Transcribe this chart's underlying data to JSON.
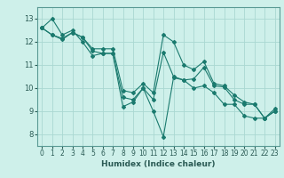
{
  "xlabel": "Humidex (Indice chaleur)",
  "bg_color": "#cef0ea",
  "grid_color": "#aad8d2",
  "line_color": "#1a7a6e",
  "xlim": [
    -0.5,
    23.5
  ],
  "ylim": [
    7.5,
    13.5
  ],
  "series": [
    [
      12.6,
      13.0,
      12.3,
      12.5,
      12.0,
      11.4,
      11.5,
      11.5,
      9.2,
      9.4,
      10.0,
      9.0,
      7.9,
      10.45,
      10.35,
      10.0,
      10.1,
      9.8,
      9.3,
      9.3,
      8.8,
      8.7,
      8.7,
      9.1
    ],
    [
      12.6,
      12.3,
      12.1,
      12.4,
      12.2,
      11.6,
      11.5,
      11.5,
      9.6,
      9.5,
      10.0,
      9.5,
      11.55,
      10.5,
      10.35,
      10.4,
      10.9,
      10.1,
      10.05,
      9.5,
      9.3,
      9.3,
      8.7,
      9.0
    ],
    [
      12.6,
      12.3,
      12.15,
      12.4,
      12.2,
      11.7,
      11.7,
      11.7,
      9.9,
      9.8,
      10.2,
      9.8,
      12.3,
      12.0,
      11.0,
      10.8,
      11.15,
      10.2,
      10.1,
      9.7,
      9.4,
      9.3,
      8.7,
      9.0
    ]
  ],
  "xticks": [
    0,
    1,
    2,
    3,
    4,
    5,
    6,
    7,
    8,
    9,
    10,
    11,
    12,
    13,
    14,
    15,
    16,
    17,
    18,
    19,
    20,
    21,
    22,
    23
  ],
  "yticks": [
    8,
    9,
    10,
    11,
    12,
    13
  ],
  "tick_fontsize": 5.5,
  "xlabel_fontsize": 6.5,
  "tick_color": "#2a5a54",
  "spine_color": "#5a9a94"
}
